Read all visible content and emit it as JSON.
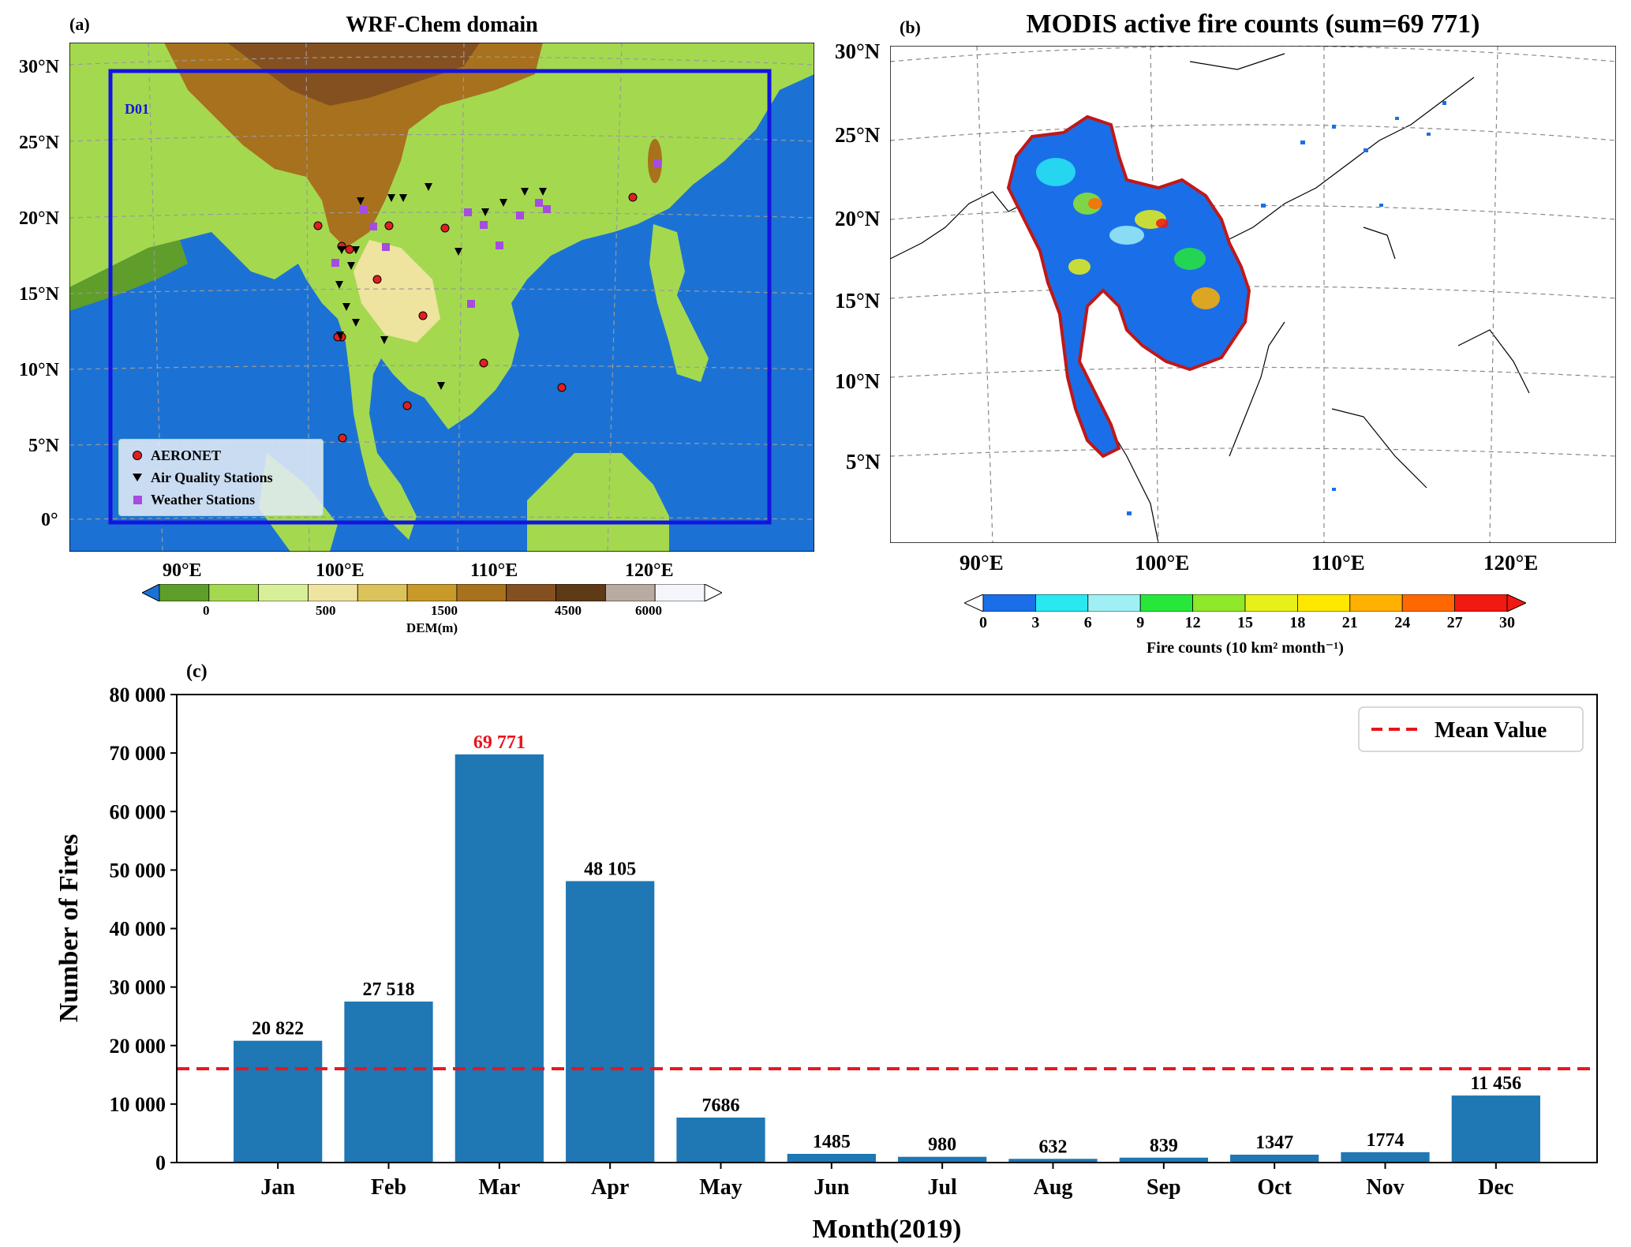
{
  "panel_a": {
    "letter": "(a)",
    "title": "WRF-Chem domain",
    "domain_label": "D01",
    "lat_labels": [
      "30°N",
      "25°N",
      "20°N",
      "15°N",
      "10°N",
      "5°N",
      "0°"
    ],
    "lon_labels": [
      "90°E",
      "100°E",
      "110°E",
      "120°E"
    ],
    "legend": [
      {
        "label": "AERONET",
        "marker": "circle",
        "color": "#e02020"
      },
      {
        "label": "Air Quality Stations",
        "marker": "triangle-down",
        "color": "#000000"
      },
      {
        "label": "Weather Stations",
        "marker": "square",
        "color": "#a64ce0"
      }
    ],
    "colorbar": {
      "label": "DEM(m)",
      "ticks": [
        "0",
        "500",
        "1500",
        "4500",
        "6000"
      ],
      "colors": [
        "#1c72d4",
        "#5f9e2a",
        "#a4d94f",
        "#d8ef9a",
        "#efe3a0",
        "#dcc25a",
        "#c99a2a",
        "#a8711e",
        "#855020",
        "#5e3a17",
        "#b9aaa2",
        "#f4f6fb",
        "#ffffff"
      ]
    }
  },
  "panel_b": {
    "letter": "(b)",
    "title": "MODIS active fire counts (sum=69 771)",
    "lat_labels": [
      "30°N",
      "25°N",
      "20°N",
      "15°N",
      "10°N",
      "5°N"
    ],
    "lon_labels": [
      "90°E",
      "100°E",
      "110°E",
      "120°E"
    ],
    "colorbar": {
      "label": "Fire counts (10 km² month⁻¹)",
      "ticks": [
        "0",
        "3",
        "6",
        "9",
        "12",
        "15",
        "18",
        "21",
        "24",
        "27",
        "30"
      ],
      "colors": [
        "#1a6fe8",
        "#29e8f0",
        "#9ef0f5",
        "#27e83a",
        "#8fe82a",
        "#e8f01a",
        "#ffe800",
        "#ffb000",
        "#ff6800",
        "#f01a10"
      ]
    }
  },
  "panel_c": {
    "letter": "(c)",
    "legend_label": "Mean Value"
  },
  "chart_data": {
    "type": "bar",
    "categories": [
      "Jan",
      "Feb",
      "Mar",
      "Apr",
      "May",
      "Jun",
      "Jul",
      "Aug",
      "Sep",
      "Oct",
      "Nov",
      "Dec"
    ],
    "values": [
      20822,
      27518,
      69771,
      48105,
      7686,
      1485,
      980,
      632,
      839,
      1347,
      1774,
      11456
    ],
    "value_labels": [
      "20 822",
      "27 518",
      "69 771",
      "48 105",
      "7686",
      "1485",
      "980",
      "632",
      "839",
      "1347",
      "1774",
      "11 456"
    ],
    "highlight_index": 2,
    "highlight_color": "#e8141e",
    "bar_color": "#1f77b4",
    "mean_line": {
      "label": "Mean Value",
      "value": 16035,
      "color": "#e8141e",
      "style": "dashed"
    },
    "xlabel": "Month(2019)",
    "ylabel": "Number of Fires",
    "ylim": [
      0,
      80000
    ],
    "yticks": [
      0,
      10000,
      20000,
      30000,
      40000,
      50000,
      60000,
      70000,
      80000
    ],
    "ytick_labels": [
      "0",
      "10 000",
      "20 000",
      "30 000",
      "40 000",
      "50 000",
      "60 000",
      "70 000",
      "80 000"
    ],
    "legend_position": "top-right",
    "grid": false
  }
}
